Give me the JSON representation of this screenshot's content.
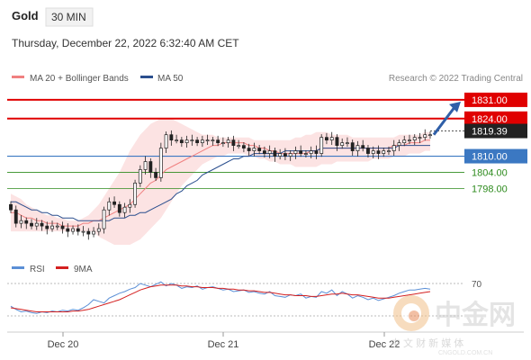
{
  "header": {
    "symbol": "Gold",
    "timeframe": "30 MIN",
    "datetime": "Thursday, December 22, 2022 6:32:40 AM CET"
  },
  "legend": {
    "ma20_bb": "MA 20 + Bollinger Bands",
    "ma50": "MA 50",
    "credit": "Research © 2022 Trading Central"
  },
  "rsi_legend": {
    "rsi": "RSI",
    "ma9": "9MA"
  },
  "watermark": {
    "cn": "中金网",
    "url": "CNGOLD.COM.CN",
    "sub": "中 文 财 新 媒 体"
  },
  "colors": {
    "resistance": "#e00000",
    "support": "#3b78c2",
    "target": "#2e8b1e",
    "price": "#222222",
    "ma20_bb": "#f08080",
    "ma50": "#2b4f8e",
    "rsi": "#5b8fd6",
    "ma9": "#d42020",
    "arrow": "#2f5fa8"
  },
  "chart_data": [
    {
      "type": "candlestick",
      "title": "Gold 30 MIN",
      "ylim": [
        1777,
        1836
      ],
      "x_ticks": [
        "Dec 20",
        "Dec 21",
        "Dec 22"
      ],
      "levels": [
        {
          "value": 1831.0,
          "label": "1831.00",
          "kind": "resistance"
        },
        {
          "value": 1824.0,
          "label": "1824.00",
          "kind": "resistance"
        },
        {
          "value": 1819.39,
          "label": "1819.39",
          "kind": "price"
        },
        {
          "value": 1810.0,
          "label": "1810.00",
          "kind": "pivot"
        },
        {
          "value": 1804.0,
          "label": "1804.00",
          "kind": "support"
        },
        {
          "value": 1798.0,
          "label": "1798.00",
          "kind": "support"
        }
      ],
      "close": [
        1790,
        1785,
        1786,
        1785,
        1784,
        1785,
        1784,
        1783,
        1784,
        1784,
        1783,
        1782,
        1783,
        1782,
        1782,
        1781,
        1782,
        1783,
        1790,
        1793,
        1792,
        1789,
        1791,
        1792,
        1800,
        1805,
        1808,
        1804,
        1802,
        1813,
        1818,
        1816,
        1816,
        1815,
        1816,
        1816,
        1815,
        1816,
        1816,
        1816,
        1815,
        1815,
        1816,
        1814,
        1814,
        1813,
        1812,
        1813,
        1812,
        1811,
        1812,
        1810,
        1811,
        1810,
        1811,
        1812,
        1811,
        1811,
        1812,
        1811,
        1817,
        1816,
        1817,
        1814,
        1815,
        1815,
        1812,
        1814,
        1813,
        1811,
        1812,
        1811,
        1812,
        1812,
        1814,
        1815,
        1816,
        1816,
        1817,
        1817,
        1818,
        1818
      ],
      "open_band_note": "",
      "ma20": [
        1789,
        1789,
        1788,
        1787,
        1787,
        1786,
        1786,
        1785,
        1785,
        1785,
        1784,
        1784,
        1784,
        1784,
        1785,
        1785,
        1786,
        1786,
        1787,
        1788,
        1789,
        1790,
        1791,
        1792,
        1794,
        1796,
        1798,
        1800,
        1801,
        1803,
        1805,
        1806,
        1807,
        1808,
        1809,
        1810,
        1811,
        1812,
        1813,
        1814,
        1814,
        1815,
        1815,
        1815,
        1815,
        1815,
        1814,
        1814,
        1813,
        1813,
        1812,
        1812,
        1811,
        1811,
        1811,
        1811,
        1811,
        1811,
        1812,
        1812,
        1813,
        1813,
        1813,
        1813,
        1813,
        1813,
        1813,
        1813,
        1813,
        1813,
        1813,
        1813,
        1813,
        1813,
        1814,
        1814,
        1814,
        1815,
        1815,
        1815,
        1816,
        1816
      ],
      "bb_upper": [
        1796,
        1795,
        1794,
        1792,
        1791,
        1790,
        1789,
        1788,
        1788,
        1787,
        1787,
        1786,
        1786,
        1786,
        1787,
        1788,
        1790,
        1792,
        1795,
        1798,
        1801,
        1804,
        1808,
        1812,
        1815,
        1818,
        1820,
        1822,
        1823,
        1824,
        1824,
        1824,
        1823,
        1822,
        1821,
        1820,
        1819,
        1818,
        1818,
        1818,
        1817,
        1817,
        1817,
        1817,
        1817,
        1817,
        1817,
        1816,
        1816,
        1816,
        1816,
        1816,
        1816,
        1816,
        1816,
        1817,
        1817,
        1818,
        1818,
        1819,
        1819,
        1819,
        1818,
        1818,
        1818,
        1818,
        1817,
        1817,
        1817,
        1817,
        1817,
        1817,
        1817,
        1817,
        1817,
        1818,
        1818,
        1818,
        1818,
        1818,
        1819,
        1819
      ],
      "bb_lower": [
        1782,
        1782,
        1782,
        1782,
        1782,
        1782,
        1782,
        1782,
        1782,
        1782,
        1782,
        1782,
        1782,
        1782,
        1782,
        1782,
        1782,
        1780,
        1779,
        1778,
        1777,
        1777,
        1777,
        1777,
        1778,
        1779,
        1781,
        1783,
        1785,
        1787,
        1790,
        1793,
        1796,
        1799,
        1801,
        1803,
        1805,
        1807,
        1808,
        1809,
        1810,
        1810,
        1811,
        1811,
        1811,
        1811,
        1810,
        1810,
        1809,
        1809,
        1808,
        1808,
        1807,
        1807,
        1807,
        1806,
        1806,
        1806,
        1806,
        1806,
        1807,
        1807,
        1807,
        1808,
        1808,
        1808,
        1808,
        1808,
        1808,
        1808,
        1809,
        1809,
        1809,
        1809,
        1810,
        1810,
        1810,
        1811,
        1811,
        1811,
        1812,
        1812
      ],
      "ma50": [
        1793,
        1793,
        1792,
        1791,
        1790,
        1790,
        1789,
        1789,
        1788,
        1788,
        1787,
        1787,
        1787,
        1786,
        1786,
        1786,
        1786,
        1786,
        1786,
        1786,
        1787,
        1787,
        1787,
        1788,
        1788,
        1789,
        1789,
        1790,
        1791,
        1792,
        1793,
        1794,
        1796,
        1797,
        1799,
        1800,
        1801,
        1803,
        1804,
        1805,
        1806,
        1807,
        1808,
        1809,
        1809,
        1810,
        1810,
        1811,
        1811,
        1811,
        1811,
        1811,
        1811,
        1812,
        1812,
        1812,
        1812,
        1812,
        1812,
        1812,
        1813,
        1813,
        1813,
        1813,
        1813,
        1813,
        1813,
        1813,
        1813,
        1813,
        1813,
        1813,
        1813,
        1813,
        1813,
        1814,
        1814,
        1814,
        1814,
        1814,
        1814,
        1814
      ]
    },
    {
      "type": "line",
      "title": "RSI",
      "ylim": [
        20,
        80
      ],
      "y_ticks": [
        70
      ],
      "series": [
        {
          "name": "RSI",
          "values": [
            42,
            38,
            35,
            36,
            34,
            33,
            35,
            34,
            36,
            35,
            37,
            36,
            38,
            37,
            40,
            44,
            50,
            48,
            46,
            52,
            55,
            58,
            60,
            63,
            65,
            70,
            68,
            66,
            69,
            72,
            67,
            70,
            68,
            64,
            66,
            65,
            67,
            63,
            65,
            66,
            64,
            62,
            63,
            60,
            61,
            62,
            59,
            60,
            58,
            57,
            60,
            55,
            54,
            53,
            56,
            55,
            57,
            52,
            54,
            53,
            60,
            58,
            62,
            55,
            60,
            57,
            52,
            55,
            53,
            50,
            52,
            49,
            51,
            53,
            55,
            58,
            60,
            62,
            62,
            63,
            64,
            63
          ]
        },
        {
          "name": "9MA",
          "values": [
            40,
            39,
            38,
            37,
            36,
            35,
            35,
            35,
            35,
            35,
            35,
            35,
            36,
            36,
            37,
            38,
            40,
            42,
            44,
            46,
            48,
            50,
            53,
            56,
            59,
            62,
            64,
            66,
            67,
            68,
            68,
            68,
            68,
            67,
            67,
            66,
            66,
            65,
            65,
            65,
            64,
            64,
            63,
            63,
            62,
            62,
            61,
            61,
            60,
            59,
            59,
            58,
            57,
            56,
            56,
            55,
            55,
            55,
            54,
            54,
            55,
            56,
            57,
            57,
            58,
            57,
            56,
            56,
            55,
            54,
            53,
            52,
            52,
            52,
            53,
            54,
            55,
            56,
            57,
            58,
            59,
            60
          ]
        }
      ]
    }
  ]
}
